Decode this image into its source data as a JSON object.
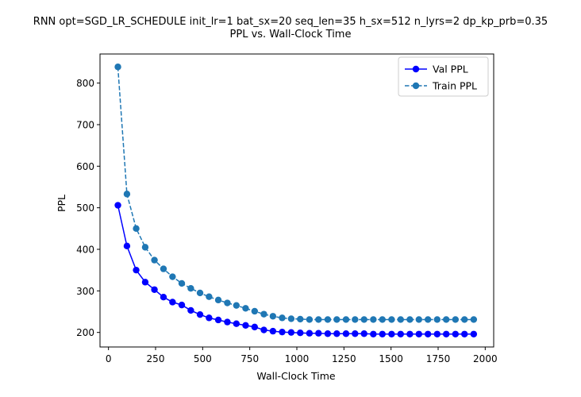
{
  "chart_data": {
    "type": "line",
    "title": "RNN opt=SGD_LR_SCHEDULE init_lr=1 bat_sx=20 seq_len=35 h_sx=512 n_lyrs=2 dp_kp_prb=0.35",
    "subtitle": "PPL vs. Wall-Clock Time",
    "xlabel": "Wall-Clock Time",
    "ylabel": "PPL",
    "xlim": [
      -45,
      2045
    ],
    "ylim": [
      165,
      870
    ],
    "xticks": [
      0,
      250,
      500,
      750,
      1000,
      1250,
      1500,
      1750,
      2000
    ],
    "yticks": [
      200,
      300,
      400,
      500,
      600,
      700,
      800
    ],
    "grid": false,
    "legend_position": "upper right",
    "x": [
      50,
      98,
      147,
      195,
      244,
      292,
      340,
      389,
      437,
      486,
      534,
      583,
      631,
      679,
      728,
      776,
      825,
      873,
      922,
      970,
      1018,
      1067,
      1115,
      1164,
      1212,
      1261,
      1309,
      1357,
      1406,
      1454,
      1503,
      1551,
      1600,
      1648,
      1696,
      1745,
      1793,
      1842,
      1890,
      1939
    ],
    "series": [
      {
        "name": "Val PPL",
        "color": "#0000ff",
        "style": "solid",
        "values": [
          506,
          408,
          350,
          321,
          303,
          285,
          273,
          266,
          253,
          243,
          235,
          230,
          225,
          221,
          217,
          213,
          206,
          203,
          201,
          200,
          199,
          198,
          198,
          197,
          197,
          197,
          197,
          197,
          196,
          196,
          196,
          196,
          196,
          196,
          196,
          196,
          196,
          196,
          196,
          196
        ]
      },
      {
        "name": "Train PPL",
        "color": "#1f77b4",
        "style": "dashed",
        "values": [
          839,
          533,
          450,
          405,
          374,
          353,
          334,
          318,
          306,
          295,
          286,
          278,
          271,
          265,
          258,
          251,
          244,
          239,
          235,
          233,
          232,
          231,
          231,
          231,
          231,
          231,
          231,
          231,
          231,
          231,
          231,
          231,
          231,
          231,
          231,
          231,
          231,
          231,
          231,
          231
        ]
      }
    ]
  }
}
